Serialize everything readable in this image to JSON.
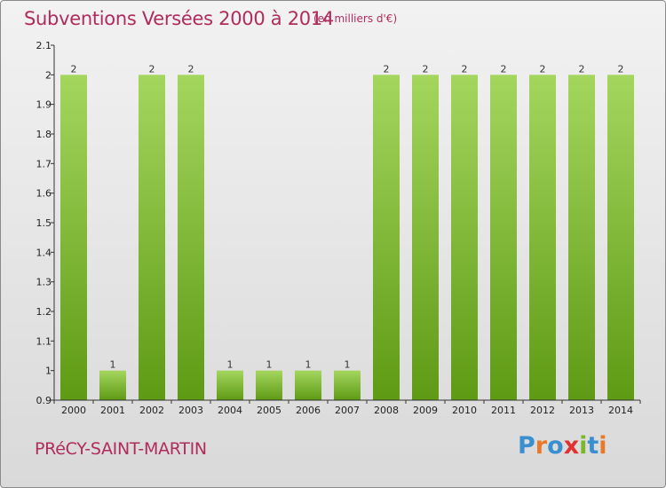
{
  "header": {
    "title": "Subventions Versées 2000 à 2014",
    "subtitle": "(en milliers d'€)"
  },
  "footer": {
    "commune": "PRéCY-SAINT-MARTIN",
    "logo_text": "Proxiti",
    "logo_colors": [
      "#3a8fd0",
      "#e8792a",
      "#3a8fd0",
      "#e03030",
      "#7ab828",
      "#3a8fd0",
      "#e8792a"
    ]
  },
  "colors": {
    "bar_light": "#a4d65e",
    "bar_dark": "#5e9a14",
    "axis": "#333333",
    "text_accent": "#b02c5c"
  },
  "chart_data": {
    "type": "bar",
    "categories": [
      "2000",
      "2001",
      "2002",
      "2003",
      "2004",
      "2005",
      "2006",
      "2007",
      "2008",
      "2009",
      "2010",
      "2011",
      "2012",
      "2013",
      "2014"
    ],
    "values": [
      2,
      1,
      2,
      2,
      1,
      1,
      1,
      1,
      2,
      2,
      2,
      2,
      2,
      2,
      2
    ],
    "data_labels": [
      "2",
      "1",
      "2",
      "2",
      "1",
      "1",
      "1",
      "1",
      "2",
      "2",
      "2",
      "2",
      "2",
      "2",
      "2"
    ],
    "y_ticks": [
      0.9,
      1,
      1.1,
      1.2,
      1.3,
      1.4,
      1.5,
      1.6,
      1.7,
      1.8,
      1.9,
      2,
      2.1
    ],
    "y_tick_labels": [
      "0.9",
      "1",
      "1.1",
      "1.2",
      "1.3",
      "1.4",
      "1.5",
      "1.6",
      "1.7",
      "1.8",
      "1.9",
      "2",
      "2.1"
    ],
    "ylim": [
      0.9,
      2.1
    ],
    "grid": false,
    "legend": "none"
  }
}
